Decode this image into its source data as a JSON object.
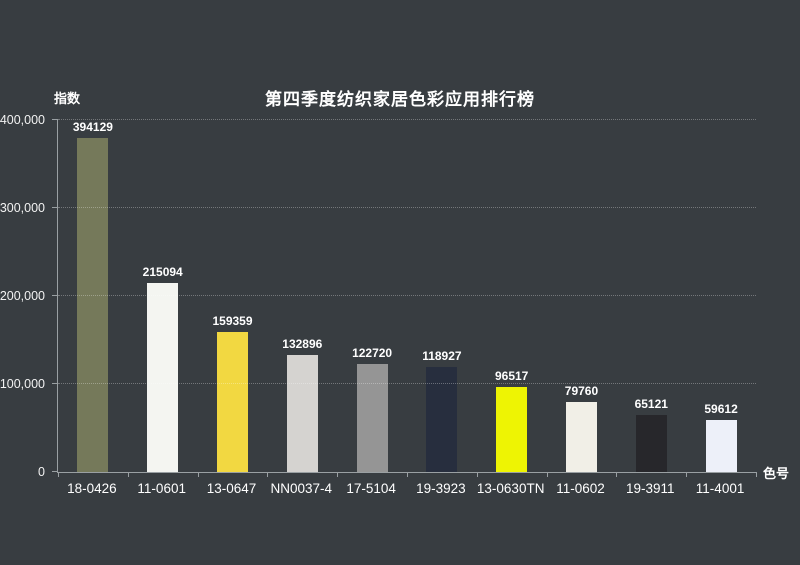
{
  "page": {
    "background_color": "#383d41",
    "text_color": "#ffffff",
    "axis_color": "#9aa0a3"
  },
  "chart_data": {
    "type": "bar",
    "title": "第四季度纺织家居色彩应用排行榜",
    "ylabel": "指数",
    "xlabel": "色号",
    "categories": [
      "18-0426",
      "11-0601",
      "13-0647",
      "NN0037-4",
      "17-5104",
      "19-3923",
      "13-0630TN",
      "11-0602",
      "19-3911",
      "11-4001"
    ],
    "values": [
      394129,
      215094,
      159359,
      132896,
      122720,
      118927,
      96517,
      79760,
      65121,
      59612
    ],
    "value_labels": [
      "394129",
      "215094",
      "159359",
      "132896",
      "122720",
      "118927",
      "96517",
      "79760",
      "65121",
      "59612"
    ],
    "bar_colors": [
      "#75795a",
      "#f4f5f1",
      "#f2d841",
      "#d5d3d0",
      "#959595",
      "#272e3e",
      "#eef403",
      "#f1efe7",
      "#27272b",
      "#edf0f9"
    ],
    "ylim": [
      0,
      400000
    ],
    "yticks": [
      0,
      100000,
      200000,
      300000,
      400000
    ],
    "ytick_labels": [
      "0",
      "100,000",
      "200,000",
      "300,000",
      "400,000"
    ],
    "grid": "horizontal dotted gridlines at each y tick",
    "legend": "none",
    "value_labels_shown": true
  }
}
